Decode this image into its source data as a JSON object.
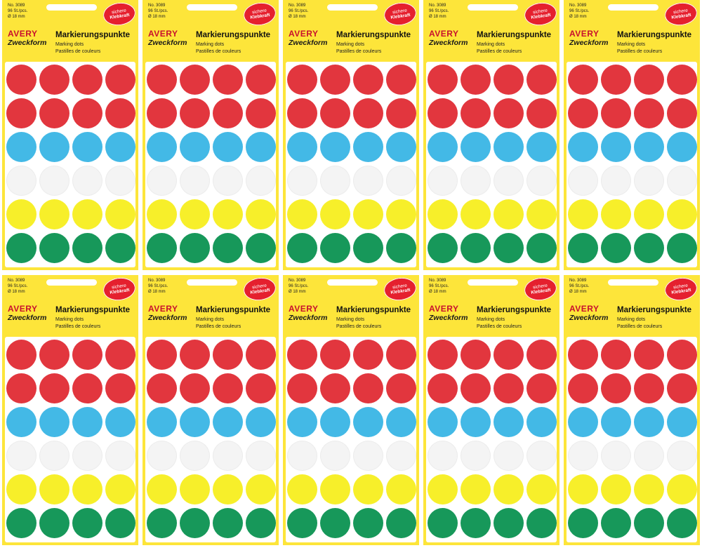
{
  "product": {
    "article_no": "No. 3089",
    "quantity": "96 St./pcs.",
    "diameter": "Ø 18 mm",
    "badge_line1": "sichere",
    "badge_line2": "Klebkraft",
    "brand_top": "AVERY",
    "brand_bottom": "Zweckform",
    "title": "Markierungspunkte",
    "subtitle_en": "Marking dots",
    "subtitle_fr": "Pastilles de couleurs"
  },
  "packs_count": 10,
  "colors": {
    "package": "#fde53a",
    "badge": "#e5202e",
    "dot_rows": [
      "#e2363e",
      "#e2363e",
      "#43b9e6",
      "#f4f4f4",
      "#f7ef2a",
      "#17985a"
    ]
  },
  "dot_row_names": [
    "red",
    "red",
    "blue",
    "white",
    "yellow",
    "green"
  ],
  "dots_per_row": 4
}
